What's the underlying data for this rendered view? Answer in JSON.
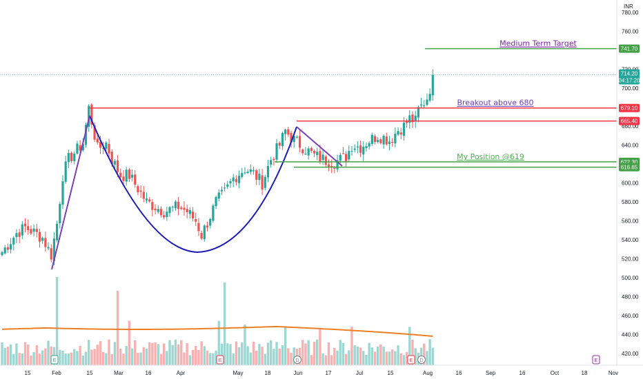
{
  "chart_data": {
    "type": "candlestick",
    "currency": "INR",
    "y_ticks": [
      "780.00",
      "760.00",
      "740.00",
      "720.00",
      "700.00",
      "680.00",
      "660.00",
      "640.00",
      "620.00",
      "600.00",
      "580.00",
      "560.00",
      "540.00",
      "520.00",
      "500.00",
      "480.00",
      "460.00",
      "440.00",
      "420.00"
    ],
    "x_ticks": [
      "15",
      "Feb",
      "15",
      "Mar",
      "16",
      "Apr",
      "May",
      "18",
      "Jun",
      "17",
      "Jul",
      "15",
      "Aug",
      "16",
      "Sep",
      "16",
      "Oct",
      "18",
      "Nov"
    ],
    "ylim": [
      412,
      792
    ],
    "price": {
      "last": "714.20",
      "countdown": "04:17:20"
    },
    "levels": [
      {
        "value": "741.70",
        "color": "#43a047",
        "label": "Medium Term Target"
      },
      {
        "value": "679.10",
        "color": "#f23645",
        "label": "Breakout above 680"
      },
      {
        "value": "665.40",
        "color": "#f23645",
        "label": ""
      },
      {
        "value": "622.30",
        "color": "#43a047",
        "label": "My Position @619"
      },
      {
        "value": "616.65",
        "color": "#43a047",
        "label": ""
      }
    ],
    "label_colors": {
      "target": "#7b1fa2",
      "breakout": "#673ab7",
      "position": "#4caf50"
    },
    "events": [
      {
        "x": "Feb",
        "label": "E"
      },
      {
        "x": "Apr",
        "label": "E"
      },
      {
        "x": "Jun",
        "label": "D"
      },
      {
        "x": "Aug",
        "label": "E"
      },
      {
        "x": "Aug",
        "label": "D"
      },
      {
        "x": "Oct",
        "label": "E"
      }
    ],
    "grid": false,
    "colors": {
      "up": "#26a69a",
      "down": "#ef5350",
      "ma": "#ef7d22",
      "pattern": "#1d1db8",
      "trend": "#7b3fb8"
    }
  }
}
